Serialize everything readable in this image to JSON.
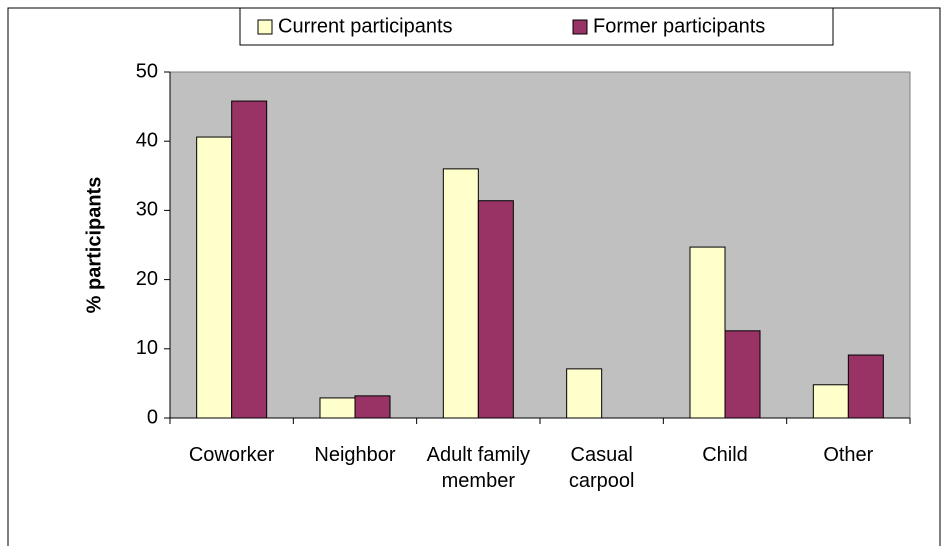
{
  "chart_data": {
    "type": "bar",
    "categories": [
      "Coworker",
      "Neighbor",
      "Adult family member",
      "Casual carpool",
      "Child",
      "Other"
    ],
    "series": [
      {
        "name": "Current participants",
        "color": "#ffffcc",
        "values": [
          40.6,
          2.9,
          36.0,
          7.1,
          24.7,
          4.8
        ]
      },
      {
        "name": "Former participants",
        "color": "#993366",
        "values": [
          45.8,
          3.2,
          31.4,
          0,
          12.6,
          9.1
        ]
      }
    ],
    "ylabel": "% participants",
    "ylim": [
      0,
      50
    ],
    "yticks": [
      0,
      10,
      20,
      30,
      40,
      50
    ],
    "plot_background": "#c0c0c0",
    "legend": "top"
  }
}
